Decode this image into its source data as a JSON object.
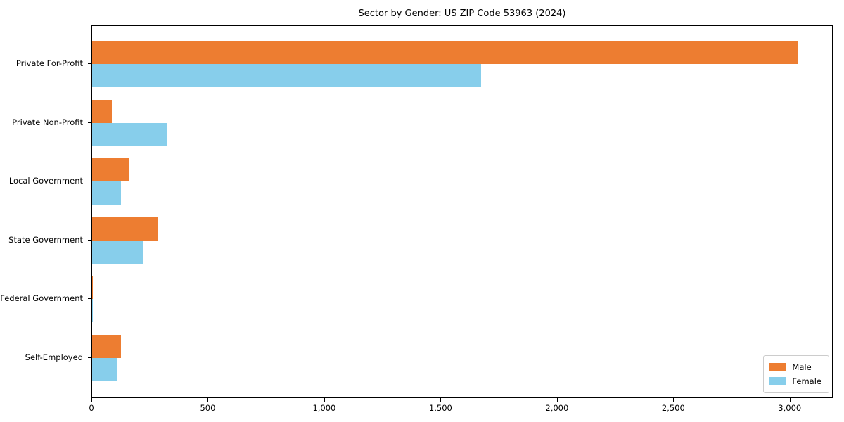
{
  "title": "Sector by Gender: US ZIP Code 53963 (2024)",
  "colors": {
    "male": "#ED7D31",
    "female": "#87CEEB",
    "axis": "#000000",
    "legend_border": "#cccccc",
    "background": "#ffffff"
  },
  "legend": {
    "items": [
      {
        "label": "Male",
        "color_key": "male"
      },
      {
        "label": "Female",
        "color_key": "female"
      }
    ],
    "position": "lower right"
  },
  "chart_data": {
    "type": "bar",
    "orientation": "horizontal",
    "title": "Sector by Gender: US ZIP Code 53963 (2024)",
    "categories": [
      "Private For-Profit",
      "Private Non-Profit",
      "Local Government",
      "State Government",
      "Federal Government",
      "Self-Employed"
    ],
    "series": [
      {
        "name": "Male",
        "color": "#ED7D31",
        "values": [
          3035,
          85,
          160,
          280,
          4,
          123
        ]
      },
      {
        "name": "Female",
        "color": "#87CEEB",
        "values": [
          1670,
          320,
          125,
          217,
          4,
          108
        ]
      }
    ],
    "xlabel": "",
    "ylabel": "",
    "xlim": [
      0,
      3185
    ],
    "xticks": [
      0,
      500,
      1000,
      1500,
      2000,
      2500,
      3000
    ],
    "xtick_labels": [
      "0",
      "500",
      "1,000",
      "1,500",
      "2,000",
      "2,500",
      "3,000"
    ],
    "grid": false,
    "legend_position": "lower right"
  }
}
